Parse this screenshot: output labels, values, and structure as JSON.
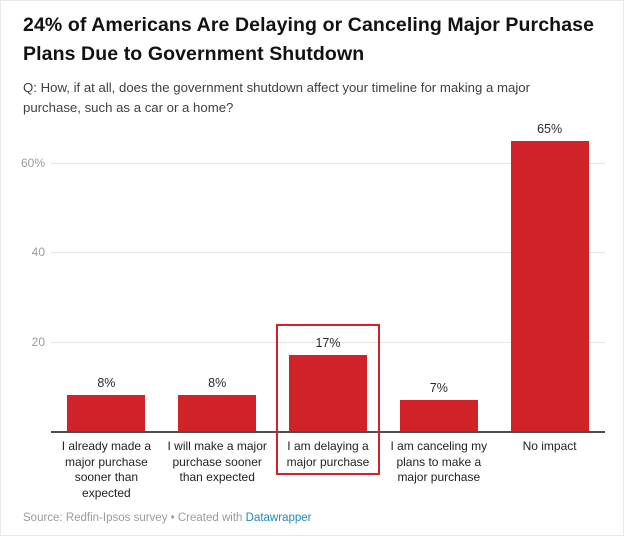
{
  "header": {
    "title": "24% of Americans Are Delaying or Canceling Major Purchase Plans Due to Government Shutdown",
    "subtitle": "Q: How, if at all, does the government shutdown affect your timeline for making a major purchase, such as a car or a home?"
  },
  "chart_data": {
    "type": "bar",
    "title": "24% of Americans Are Delaying or Canceling Major Purchase Plans Due to Government Shutdown",
    "subtitle": "Q: How, if at all, does the government shutdown affect your timeline for making a major purchase, such as a car or a home?",
    "categories": [
      "I already made a major purchase sooner than expected",
      "I will make a major purchase sooner than expected",
      "I am delaying a major purchase",
      "I am canceling my plans to make a major purchase",
      "No impact"
    ],
    "values": [
      8,
      8,
      17,
      7,
      65
    ],
    "value_labels": [
      "8%",
      "8%",
      "17%",
      "7%",
      "65%"
    ],
    "xlabel": "",
    "ylabel": "",
    "ylim": [
      0,
      69
    ],
    "y_ticks": [
      {
        "value": 20,
        "label": "20"
      },
      {
        "value": 40,
        "label": "40"
      },
      {
        "value": 60,
        "label": "60%"
      }
    ],
    "grid": true,
    "legend_position": "none",
    "highlight_index": 2,
    "colors": {
      "bar": "#d12129",
      "highlight_border": "#d12129",
      "gridline": "#e6e6e6",
      "baseline": "#4d4d4d",
      "tick_label": "#9c9c9c",
      "value_label": "#2b2b2b"
    }
  },
  "footer": {
    "source": "Source: Redfin-Ipsos survey",
    "separator": " • ",
    "created_with": "Created with ",
    "link_label": "Datawrapper",
    "link_color": "#1f87c4"
  }
}
